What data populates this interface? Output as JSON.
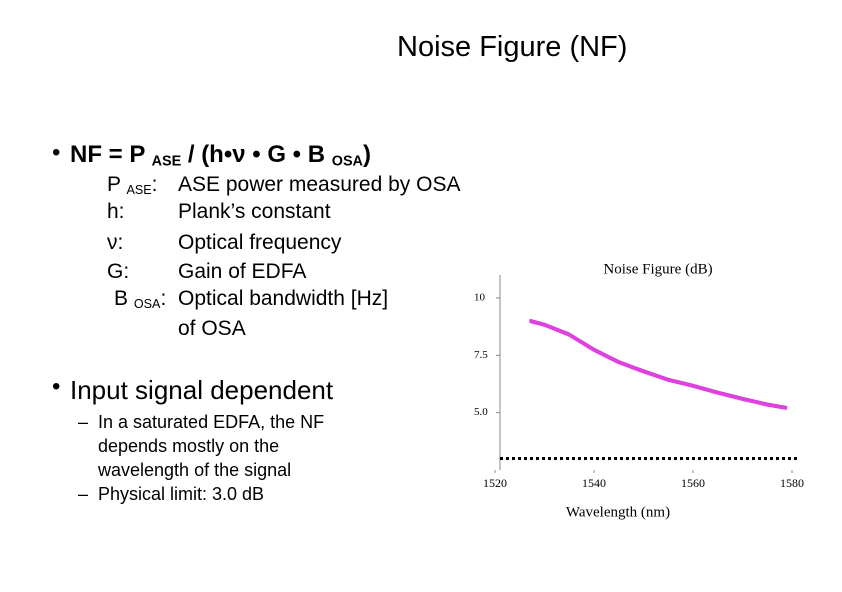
{
  "title": "Noise Figure (NF)",
  "bullets": [
    {
      "formula": [
        {
          "text": "NF = P "
        },
        {
          "text": "ASE",
          "sub": true
        },
        {
          "text": " / (h•ν • G • B "
        },
        {
          "text": "OSA",
          "sub": true
        },
        {
          "text": ")"
        }
      ],
      "definitions": [
        {
          "term": [
            {
              "text": "P "
            },
            {
              "text": "ASE",
              "sub": true
            },
            {
              "text": ":"
            }
          ],
          "desc": [
            "ASE power measured by OSA"
          ]
        },
        {
          "term": [
            {
              "text": "h:"
            }
          ],
          "desc": [
            "Plank’s constant"
          ]
        },
        {
          "term": [
            {
              "text": "ν:"
            }
          ],
          "desc": [
            "Optical frequency"
          ]
        },
        {
          "term": [
            {
              "text": "G:"
            }
          ],
          "desc": [
            "Gain of EDFA"
          ]
        },
        {
          "term": [
            {
              "text": "B "
            },
            {
              "text": "OSA",
              "sub": true
            },
            {
              "text": ":"
            }
          ],
          "desc": [
            "Optical bandwidth [Hz]",
            "of OSA"
          ]
        }
      ]
    },
    {
      "text": "Input signal dependent",
      "subbullets": [
        [
          "In a saturated EDFA, the NF",
          "depends mostly on the",
          "wavelength of the signal"
        ],
        [
          "Physical limit: 3.0 dB"
        ]
      ]
    }
  ],
  "chart_data": {
    "type": "line",
    "title": "Noise Figure (dB)",
    "x_label": "Wavelength (nm)",
    "x": [
      1527,
      1530,
      1535,
      1540,
      1545,
      1550,
      1555,
      1560,
      1565,
      1570,
      1575,
      1579
    ],
    "values": [
      9.0,
      8.83,
      8.4,
      7.74,
      7.2,
      6.8,
      6.43,
      6.17,
      5.87,
      5.6,
      5.35,
      5.2
    ],
    "color": "#e040e0",
    "reference_line": 3.0,
    "xlim": [
      1520,
      1580
    ],
    "xticks": [
      1520,
      1540,
      1560,
      1580
    ],
    "ylim": [
      2.5,
      11
    ],
    "yticks": [
      10,
      7.5,
      {
        "value": 5,
        "label": "5.0"
      }
    ]
  }
}
